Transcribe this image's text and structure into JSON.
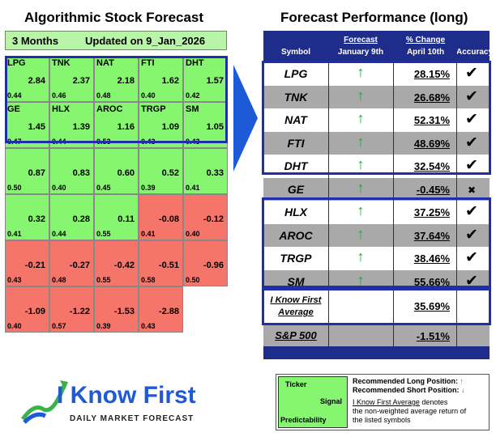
{
  "left": {
    "title": "Algorithmic Stock Forecast",
    "period": "3 Months",
    "updated": "Updated on 9_Jan_2026",
    "rows": [
      [
        {
          "symbol": "LPG",
          "signal": "2.84",
          "pred": "0.44",
          "type": "pos"
        },
        {
          "symbol": "TNK",
          "signal": "2.37",
          "pred": "0.46",
          "type": "pos"
        },
        {
          "symbol": "NAT",
          "signal": "2.18",
          "pred": "0.48",
          "type": "pos"
        },
        {
          "symbol": "FTI",
          "signal": "1.62",
          "pred": "0.40",
          "type": "pos"
        },
        {
          "symbol": "DHT",
          "signal": "1.57",
          "pred": "0.42",
          "type": "pos"
        }
      ],
      [
        {
          "symbol": "GE",
          "signal": "1.45",
          "pred": "0.47",
          "type": "pos"
        },
        {
          "symbol": "HLX",
          "signal": "1.39",
          "pred": "0.44",
          "type": "pos"
        },
        {
          "symbol": "AROC",
          "signal": "1.16",
          "pred": "0.53",
          "type": "pos"
        },
        {
          "symbol": "TRGP",
          "signal": "1.09",
          "pred": "0.43",
          "type": "pos"
        },
        {
          "symbol": "SM",
          "signal": "1.05",
          "pred": "0.43",
          "type": "pos"
        }
      ],
      [
        {
          "symbol": "",
          "signal": "0.87",
          "pred": "0.50",
          "type": "pos"
        },
        {
          "symbol": "",
          "signal": "0.83",
          "pred": "0.40",
          "type": "pos"
        },
        {
          "symbol": "",
          "signal": "0.60",
          "pred": "0.45",
          "type": "pos"
        },
        {
          "symbol": "",
          "signal": "0.52",
          "pred": "0.39",
          "type": "pos"
        },
        {
          "symbol": "",
          "signal": "0.33",
          "pred": "0.41",
          "type": "pos"
        }
      ],
      [
        {
          "symbol": "",
          "signal": "0.32",
          "pred": "0.41",
          "type": "pos"
        },
        {
          "symbol": "",
          "signal": "0.28",
          "pred": "0.44",
          "type": "pos"
        },
        {
          "symbol": "",
          "signal": "0.11",
          "pred": "0.55",
          "type": "pos"
        },
        {
          "symbol": "",
          "signal": "-0.08",
          "pred": "0.41",
          "type": "neg"
        },
        {
          "symbol": "",
          "signal": "-0.12",
          "pred": "0.40",
          "type": "neg"
        }
      ],
      [
        {
          "symbol": "",
          "signal": "-0.21",
          "pred": "0.43",
          "type": "neg"
        },
        {
          "symbol": "",
          "signal": "-0.27",
          "pred": "0.48",
          "type": "neg"
        },
        {
          "symbol": "",
          "signal": "-0.42",
          "pred": "0.55",
          "type": "neg"
        },
        {
          "symbol": "",
          "signal": "-0.51",
          "pred": "0.58",
          "type": "neg"
        },
        {
          "symbol": "",
          "signal": "-0.96",
          "pred": "0.50",
          "type": "neg"
        }
      ],
      [
        {
          "symbol": "",
          "signal": "-1.09",
          "pred": "0.40",
          "type": "neg"
        },
        {
          "symbol": "",
          "signal": "-1.22",
          "pred": "0.57",
          "type": "neg"
        },
        {
          "symbol": "",
          "signal": "-1.53",
          "pred": "0.39",
          "type": "neg"
        },
        {
          "symbol": "",
          "signal": "-2.88",
          "pred": "0.43",
          "type": "neg"
        }
      ]
    ]
  },
  "right": {
    "title": "Forecast Performance (long)",
    "headers": {
      "symbol": "Symbol",
      "forecast": "Forecast",
      "forecast_date": "January 9th",
      "change": "% Change",
      "change_date": "April 10th",
      "accuracy": "Accuracy"
    },
    "rows": [
      {
        "symbol": "LPG",
        "change": "28.15%",
        "acc": "✔"
      },
      {
        "symbol": "TNK",
        "change": "26.68%",
        "acc": "✔"
      },
      {
        "symbol": "NAT",
        "change": "52.31%",
        "acc": "✔"
      },
      {
        "symbol": "FTI",
        "change": "48.69%",
        "acc": "✔"
      },
      {
        "symbol": "DHT",
        "change": "32.54%",
        "acc": "✔"
      },
      {
        "symbol": "GE",
        "change": "-0.45%",
        "acc": "✖"
      },
      {
        "symbol": "HLX",
        "change": "37.25%",
        "acc": "✔"
      },
      {
        "symbol": "AROC",
        "change": "37.64%",
        "acc": "✔"
      },
      {
        "symbol": "TRGP",
        "change": "38.46%",
        "acc": "✔"
      },
      {
        "symbol": "SM",
        "change": "55.66%",
        "acc": "✔"
      }
    ],
    "up_arrow": "↑",
    "average_label_1": "I Know First",
    "average_label_2": "Average",
    "average_value": "35.69%",
    "sp_label": "S&P 500",
    "sp_value": "-1.51%"
  },
  "logo": {
    "brand": "I Know First",
    "tagline": "DAILY MARKET FORECAST"
  },
  "legend": {
    "ticker": "Ticker",
    "signal": "Signal",
    "predictability": "Predictability",
    "long": "Recommended Long Position:",
    "short": "Recommended Short Position:",
    "up": "↑",
    "down": "↓",
    "note_link": "I Know First Average",
    "note_rest_1": " denotes",
    "note_rest_2": "the non-weighted average return of",
    "note_rest_3": "the listed symbols"
  },
  "colors": {
    "positive": "#86f56f",
    "negative": "#f5756a",
    "navy": "#1e2c8c",
    "highlight": "#1f2fa8"
  }
}
